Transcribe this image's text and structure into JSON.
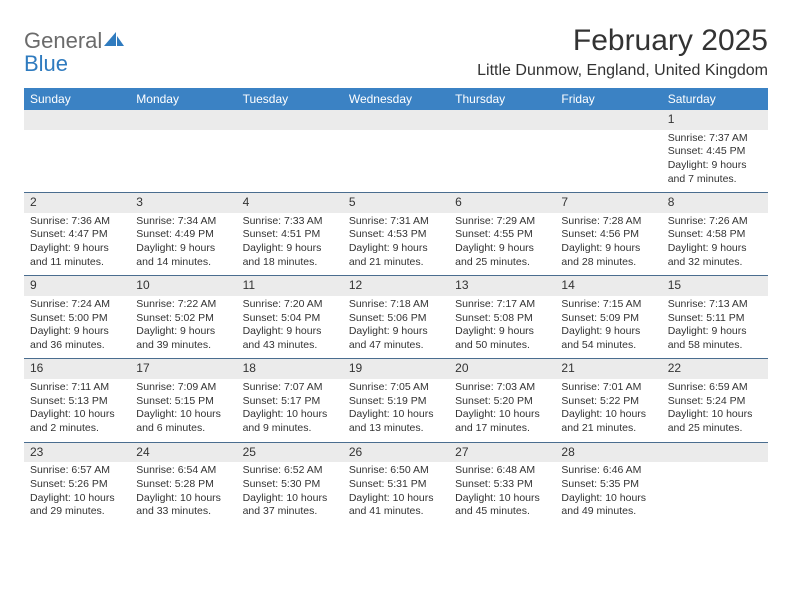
{
  "logo": {
    "text1": "General",
    "text2": "Blue"
  },
  "title": "February 2025",
  "location": "Little Dunmow, England, United Kingdom",
  "colors": {
    "header_bg": "#3b82c4",
    "header_text": "#ffffff",
    "daynum_bg": "#ebebeb",
    "divider": "#4a6d8f",
    "logo_gray": "#6b6b6b",
    "logo_blue": "#2f7bbf"
  },
  "dayNames": [
    "Sunday",
    "Monday",
    "Tuesday",
    "Wednesday",
    "Thursday",
    "Friday",
    "Saturday"
  ],
  "weeks": [
    [
      null,
      null,
      null,
      null,
      null,
      null,
      {
        "n": "1",
        "sunrise": "Sunrise: 7:37 AM",
        "sunset": "Sunset: 4:45 PM",
        "dl1": "Daylight: 9 hours",
        "dl2": "and 7 minutes."
      }
    ],
    [
      {
        "n": "2",
        "sunrise": "Sunrise: 7:36 AM",
        "sunset": "Sunset: 4:47 PM",
        "dl1": "Daylight: 9 hours",
        "dl2": "and 11 minutes."
      },
      {
        "n": "3",
        "sunrise": "Sunrise: 7:34 AM",
        "sunset": "Sunset: 4:49 PM",
        "dl1": "Daylight: 9 hours",
        "dl2": "and 14 minutes."
      },
      {
        "n": "4",
        "sunrise": "Sunrise: 7:33 AM",
        "sunset": "Sunset: 4:51 PM",
        "dl1": "Daylight: 9 hours",
        "dl2": "and 18 minutes."
      },
      {
        "n": "5",
        "sunrise": "Sunrise: 7:31 AM",
        "sunset": "Sunset: 4:53 PM",
        "dl1": "Daylight: 9 hours",
        "dl2": "and 21 minutes."
      },
      {
        "n": "6",
        "sunrise": "Sunrise: 7:29 AM",
        "sunset": "Sunset: 4:55 PM",
        "dl1": "Daylight: 9 hours",
        "dl2": "and 25 minutes."
      },
      {
        "n": "7",
        "sunrise": "Sunrise: 7:28 AM",
        "sunset": "Sunset: 4:56 PM",
        "dl1": "Daylight: 9 hours",
        "dl2": "and 28 minutes."
      },
      {
        "n": "8",
        "sunrise": "Sunrise: 7:26 AM",
        "sunset": "Sunset: 4:58 PM",
        "dl1": "Daylight: 9 hours",
        "dl2": "and 32 minutes."
      }
    ],
    [
      {
        "n": "9",
        "sunrise": "Sunrise: 7:24 AM",
        "sunset": "Sunset: 5:00 PM",
        "dl1": "Daylight: 9 hours",
        "dl2": "and 36 minutes."
      },
      {
        "n": "10",
        "sunrise": "Sunrise: 7:22 AM",
        "sunset": "Sunset: 5:02 PM",
        "dl1": "Daylight: 9 hours",
        "dl2": "and 39 minutes."
      },
      {
        "n": "11",
        "sunrise": "Sunrise: 7:20 AM",
        "sunset": "Sunset: 5:04 PM",
        "dl1": "Daylight: 9 hours",
        "dl2": "and 43 minutes."
      },
      {
        "n": "12",
        "sunrise": "Sunrise: 7:18 AM",
        "sunset": "Sunset: 5:06 PM",
        "dl1": "Daylight: 9 hours",
        "dl2": "and 47 minutes."
      },
      {
        "n": "13",
        "sunrise": "Sunrise: 7:17 AM",
        "sunset": "Sunset: 5:08 PM",
        "dl1": "Daylight: 9 hours",
        "dl2": "and 50 minutes."
      },
      {
        "n": "14",
        "sunrise": "Sunrise: 7:15 AM",
        "sunset": "Sunset: 5:09 PM",
        "dl1": "Daylight: 9 hours",
        "dl2": "and 54 minutes."
      },
      {
        "n": "15",
        "sunrise": "Sunrise: 7:13 AM",
        "sunset": "Sunset: 5:11 PM",
        "dl1": "Daylight: 9 hours",
        "dl2": "and 58 minutes."
      }
    ],
    [
      {
        "n": "16",
        "sunrise": "Sunrise: 7:11 AM",
        "sunset": "Sunset: 5:13 PM",
        "dl1": "Daylight: 10 hours",
        "dl2": "and 2 minutes."
      },
      {
        "n": "17",
        "sunrise": "Sunrise: 7:09 AM",
        "sunset": "Sunset: 5:15 PM",
        "dl1": "Daylight: 10 hours",
        "dl2": "and 6 minutes."
      },
      {
        "n": "18",
        "sunrise": "Sunrise: 7:07 AM",
        "sunset": "Sunset: 5:17 PM",
        "dl1": "Daylight: 10 hours",
        "dl2": "and 9 minutes."
      },
      {
        "n": "19",
        "sunrise": "Sunrise: 7:05 AM",
        "sunset": "Sunset: 5:19 PM",
        "dl1": "Daylight: 10 hours",
        "dl2": "and 13 minutes."
      },
      {
        "n": "20",
        "sunrise": "Sunrise: 7:03 AM",
        "sunset": "Sunset: 5:20 PM",
        "dl1": "Daylight: 10 hours",
        "dl2": "and 17 minutes."
      },
      {
        "n": "21",
        "sunrise": "Sunrise: 7:01 AM",
        "sunset": "Sunset: 5:22 PM",
        "dl1": "Daylight: 10 hours",
        "dl2": "and 21 minutes."
      },
      {
        "n": "22",
        "sunrise": "Sunrise: 6:59 AM",
        "sunset": "Sunset: 5:24 PM",
        "dl1": "Daylight: 10 hours",
        "dl2": "and 25 minutes."
      }
    ],
    [
      {
        "n": "23",
        "sunrise": "Sunrise: 6:57 AM",
        "sunset": "Sunset: 5:26 PM",
        "dl1": "Daylight: 10 hours",
        "dl2": "and 29 minutes."
      },
      {
        "n": "24",
        "sunrise": "Sunrise: 6:54 AM",
        "sunset": "Sunset: 5:28 PM",
        "dl1": "Daylight: 10 hours",
        "dl2": "and 33 minutes."
      },
      {
        "n": "25",
        "sunrise": "Sunrise: 6:52 AM",
        "sunset": "Sunset: 5:30 PM",
        "dl1": "Daylight: 10 hours",
        "dl2": "and 37 minutes."
      },
      {
        "n": "26",
        "sunrise": "Sunrise: 6:50 AM",
        "sunset": "Sunset: 5:31 PM",
        "dl1": "Daylight: 10 hours",
        "dl2": "and 41 minutes."
      },
      {
        "n": "27",
        "sunrise": "Sunrise: 6:48 AM",
        "sunset": "Sunset: 5:33 PM",
        "dl1": "Daylight: 10 hours",
        "dl2": "and 45 minutes."
      },
      {
        "n": "28",
        "sunrise": "Sunrise: 6:46 AM",
        "sunset": "Sunset: 5:35 PM",
        "dl1": "Daylight: 10 hours",
        "dl2": "and 49 minutes."
      },
      null
    ]
  ]
}
